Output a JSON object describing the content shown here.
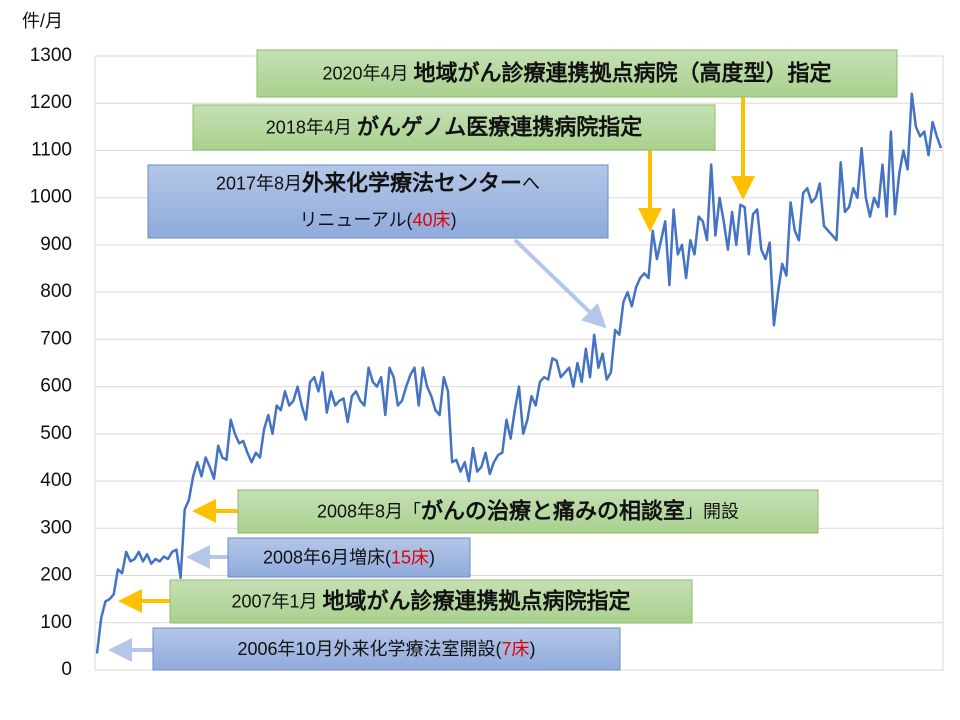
{
  "chart_data": {
    "type": "line",
    "y_unit": "件/月",
    "ylim": [
      0,
      1300
    ],
    "yticks": [
      0,
      100,
      200,
      300,
      400,
      500,
      600,
      700,
      800,
      900,
      1000,
      1100,
      1200,
      1300
    ],
    "grid": true,
    "series": [
      {
        "color": "#4472c4",
        "values": [
          35,
          110,
          145,
          150,
          160,
          213,
          205,
          250,
          230,
          235,
          250,
          230,
          245,
          225,
          235,
          230,
          240,
          235,
          250,
          255,
          195,
          340,
          360,
          410,
          440,
          410,
          450,
          430,
          405,
          475,
          450,
          445,
          530,
          500,
          480,
          485,
          460,
          440,
          460,
          450,
          510,
          540,
          500,
          560,
          550,
          590,
          560,
          570,
          600,
          560,
          530,
          610,
          620,
          590,
          630,
          545,
          590,
          560,
          570,
          575,
          525,
          580,
          590,
          570,
          560,
          640,
          610,
          600,
          620,
          540,
          640,
          620,
          560,
          570,
          600,
          625,
          640,
          560,
          640,
          600,
          580,
          550,
          540,
          620,
          590,
          440,
          445,
          420,
          440,
          400,
          470,
          420,
          430,
          460,
          415,
          440,
          455,
          460,
          530,
          490,
          550,
          600,
          500,
          530,
          580,
          560,
          610,
          620,
          615,
          660,
          655,
          620,
          630,
          640,
          600,
          650,
          610,
          680,
          620,
          710,
          640,
          670,
          615,
          630,
          720,
          710,
          780,
          800,
          770,
          810,
          830,
          840,
          830,
          930,
          870,
          910,
          950,
          815,
          975,
          880,
          900,
          830,
          910,
          880,
          960,
          950,
          910,
          1070,
          920,
          1000,
          950,
          890,
          970,
          900,
          985,
          980,
          880,
          965,
          975,
          890,
          870,
          905,
          730,
          800,
          860,
          835,
          990,
          930,
          910,
          1010,
          1020,
          990,
          1000,
          1030,
          940,
          930,
          920,
          910,
          1075,
          970,
          980,
          1020,
          1000,
          1105,
          1000,
          960,
          1000,
          980,
          1070,
          960,
          1140,
          965,
          1050,
          1100,
          1060,
          1220,
          1150,
          1130,
          1140,
          1090,
          1160,
          1130,
          1105
        ]
      }
    ],
    "annotations": [
      {
        "box": "green",
        "lines": [
          [
            {
              "text": "2020年4月 "
            },
            {
              "text": "地域がん診療連携拠点病院（高度型）指定",
              "bold": true
            }
          ]
        ]
      },
      {
        "box": "green",
        "lines": [
          [
            {
              "text": "2018年4月 "
            },
            {
              "text": "がんゲノム医療連携病院指定",
              "bold": true
            }
          ]
        ]
      },
      {
        "box": "blue",
        "lines": [
          [
            {
              "text": "2017年8月"
            },
            {
              "text": "外来化学療法センター",
              "bold": true
            },
            {
              "text": "へ"
            }
          ],
          [
            {
              "text": "リニューアル("
            },
            {
              "text": "40床",
              "color": "#e00000"
            },
            {
              "text": ")"
            }
          ]
        ]
      },
      {
        "box": "green",
        "lines": [
          [
            {
              "text": "2008年8月「"
            },
            {
              "text": "がんの治療と痛みの相談室",
              "bold": true
            },
            {
              "text": "」開設"
            }
          ]
        ]
      },
      {
        "box": "blue",
        "lines": [
          [
            {
              "text": "2008年6月増床("
            },
            {
              "text": "15床",
              "color": "#e00000"
            },
            {
              "text": ")"
            }
          ]
        ]
      },
      {
        "box": "green",
        "lines": [
          [
            {
              "text": "2007年1月 "
            },
            {
              "text": "地域がん診療連携拠点病院指定",
              "bold": true
            }
          ]
        ]
      },
      {
        "box": "blue",
        "lines": [
          [
            {
              "text": "2006年10月外来化学療法室開設("
            },
            {
              "text": "7床",
              "color": "#e00000"
            },
            {
              "text": ")"
            }
          ]
        ]
      }
    ]
  }
}
